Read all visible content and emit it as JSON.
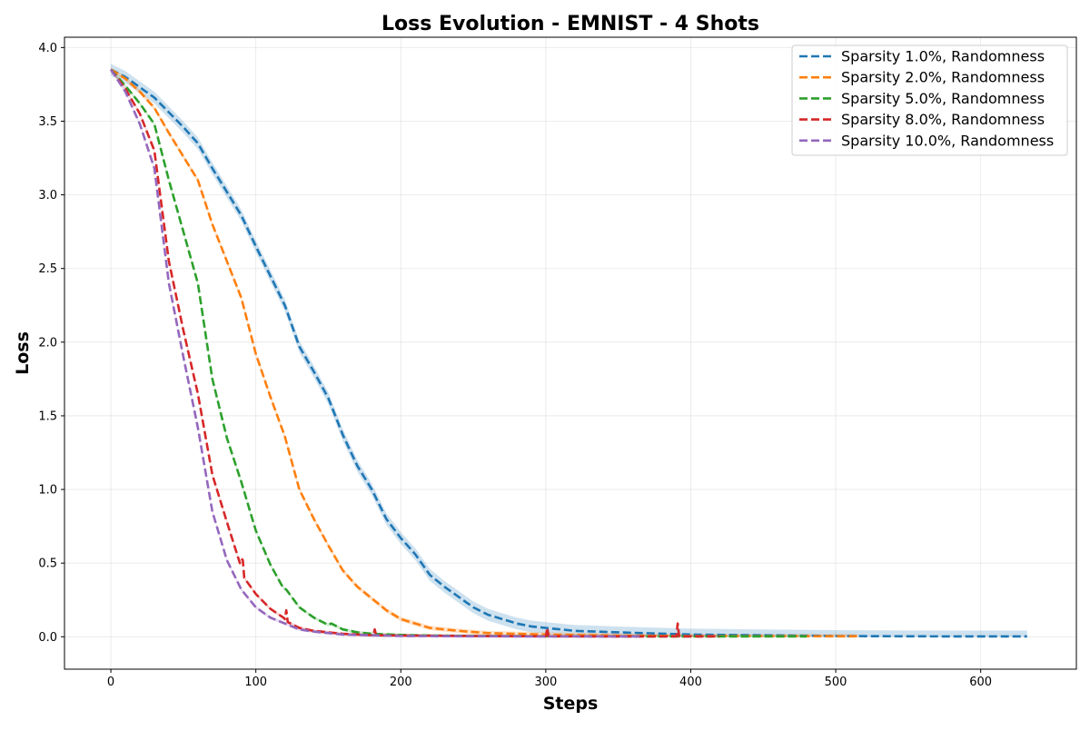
{
  "chart_data": {
    "type": "line",
    "title": "Loss Evolution - EMNIST - 4 Shots",
    "xlabel": "Steps",
    "ylabel": "Loss",
    "xlim": [
      -32,
      666
    ],
    "ylim": [
      -0.22,
      4.07
    ],
    "xticks": [
      0,
      100,
      200,
      300,
      400,
      500,
      600
    ],
    "yticks": [
      0.0,
      0.5,
      1.0,
      1.5,
      2.0,
      2.5,
      3.0,
      3.5,
      4.0
    ],
    "xtick_labels": [
      "0",
      "100",
      "200",
      "300",
      "400",
      "500",
      "600"
    ],
    "ytick_labels": [
      "0.0",
      "0.5",
      "1.0",
      "1.5",
      "2.0",
      "2.5",
      "3.0",
      "3.5",
      "4.0"
    ],
    "grid": true,
    "legend_position": "top-right",
    "line_style": "dashed",
    "series": [
      {
        "name": "Sparsity 1.0%, Randomness",
        "color": "#1f77b4",
        "band": 0.04,
        "x": [
          0,
          10,
          20,
          30,
          40,
          50,
          60,
          70,
          80,
          90,
          100,
          110,
          120,
          130,
          140,
          150,
          160,
          170,
          180,
          190,
          200,
          210,
          220,
          230,
          240,
          250,
          260,
          270,
          280,
          290,
          300,
          320,
          350,
          400,
          450,
          500,
          550,
          600,
          632
        ],
        "y": [
          3.85,
          3.8,
          3.73,
          3.66,
          3.56,
          3.46,
          3.35,
          3.18,
          3.02,
          2.86,
          2.65,
          2.45,
          2.25,
          1.97,
          1.8,
          1.62,
          1.37,
          1.16,
          1.0,
          0.8,
          0.67,
          0.56,
          0.42,
          0.34,
          0.27,
          0.2,
          0.15,
          0.12,
          0.09,
          0.07,
          0.06,
          0.04,
          0.03,
          0.015,
          0.01,
          0.005,
          0.003,
          0.002,
          0.002
        ]
      },
      {
        "name": "Sparsity 2.0%, Randomness",
        "color": "#ff7f0e",
        "band": 0.015,
        "x": [
          0,
          10,
          20,
          30,
          40,
          50,
          60,
          70,
          80,
          90,
          100,
          110,
          120,
          130,
          140,
          150,
          160,
          170,
          180,
          190,
          200,
          210,
          220,
          240,
          260,
          280,
          300,
          350,
          400,
          450,
          515
        ],
        "y": [
          3.85,
          3.79,
          3.7,
          3.59,
          3.42,
          3.26,
          3.1,
          2.8,
          2.55,
          2.3,
          1.92,
          1.63,
          1.36,
          1.0,
          0.8,
          0.62,
          0.45,
          0.34,
          0.26,
          0.18,
          0.12,
          0.09,
          0.06,
          0.04,
          0.025,
          0.02,
          0.015,
          0.008,
          0.005,
          0.004,
          0.003
        ]
      },
      {
        "name": "Sparsity 5.0%, Randomness",
        "color": "#2ca02c",
        "band": 0.01,
        "x": [
          0,
          10,
          20,
          30,
          40,
          50,
          60,
          70,
          80,
          90,
          100,
          110,
          119,
          121,
          130,
          140,
          150,
          152,
          160,
          170,
          180,
          200,
          220,
          250,
          300,
          400,
          480
        ],
        "y": [
          3.85,
          3.74,
          3.62,
          3.48,
          3.1,
          2.75,
          2.4,
          1.75,
          1.35,
          1.05,
          0.72,
          0.49,
          0.33,
          0.32,
          0.2,
          0.13,
          0.08,
          0.09,
          0.05,
          0.03,
          0.02,
          0.012,
          0.008,
          0.005,
          0.003,
          0.002,
          0.002
        ]
      },
      {
        "name": "Sparsity 8.0%, Randomness",
        "color": "#d62728",
        "band": 0.01,
        "x": [
          0,
          10,
          20,
          30,
          40,
          50,
          60,
          70,
          80,
          89,
          90,
          91,
          92,
          100,
          110,
          119,
          120,
          121,
          122,
          130,
          140,
          150,
          160,
          181,
          182,
          183,
          200,
          250,
          300,
          301,
          302,
          303,
          350,
          390,
          391,
          392,
          393,
          420
        ],
        "y": [
          3.85,
          3.72,
          3.55,
          3.3,
          2.55,
          2.08,
          1.65,
          1.1,
          0.78,
          0.5,
          0.53,
          0.52,
          0.4,
          0.29,
          0.19,
          0.13,
          0.12,
          0.18,
          0.1,
          0.06,
          0.04,
          0.03,
          0.02,
          0.01,
          0.05,
          0.01,
          0.008,
          0.005,
          0.003,
          0.06,
          0.003,
          0.003,
          0.002,
          0.002,
          0.09,
          0.002,
          0.002,
          0.002
        ]
      },
      {
        "name": "Sparsity 10.0%, Randomness",
        "color": "#9467bd",
        "band": 0.01,
        "x": [
          0,
          10,
          20,
          30,
          40,
          50,
          60,
          70,
          80,
          90,
          100,
          110,
          120,
          130,
          140,
          150,
          160,
          180,
          200,
          250,
          300,
          365
        ],
        "y": [
          3.85,
          3.7,
          3.48,
          3.18,
          2.4,
          1.9,
          1.42,
          0.85,
          0.52,
          0.32,
          0.2,
          0.13,
          0.09,
          0.05,
          0.035,
          0.025,
          0.015,
          0.01,
          0.005,
          0.003,
          0.002,
          0.002
        ]
      }
    ]
  }
}
